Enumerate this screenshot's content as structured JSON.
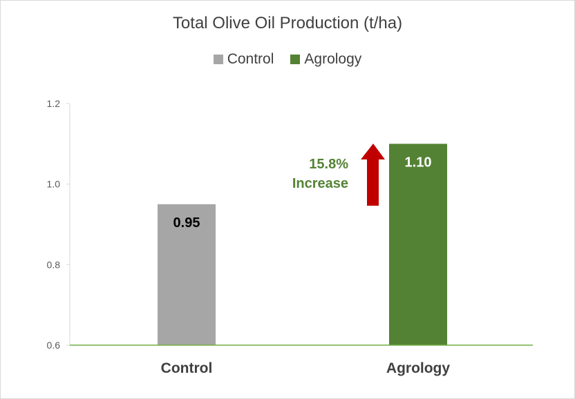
{
  "chart_data": {
    "type": "bar",
    "title": "Total Olive Oil Production (t/ha)",
    "categories": [
      "Control",
      "Agrology"
    ],
    "series": [
      {
        "name": "Control",
        "values": [
          0.95,
          null
        ],
        "color": "#a6a6a6"
      },
      {
        "name": "Agrology",
        "values": [
          null,
          1.1
        ],
        "color": "#548235"
      }
    ],
    "values": [
      0.95,
      1.1
    ],
    "data_labels": [
      "0.95",
      "1.10"
    ],
    "data_label_colors": [
      "#000000",
      "#ffffff"
    ],
    "ylim": [
      0.6,
      1.2
    ],
    "yticks": [
      0.6,
      0.8,
      1.0,
      1.2
    ],
    "ytick_labels": [
      "0.6",
      "0.8",
      "1.0",
      "1.2"
    ],
    "xlabel": "",
    "ylabel": "",
    "grid": false,
    "legend_position": "top",
    "axis_color": "#70ad47",
    "annotation": {
      "line1": "15.8%",
      "line2": "Increase",
      "color": "#548235",
      "arrow_color": "#c00000",
      "arrow_direction": "up"
    }
  }
}
